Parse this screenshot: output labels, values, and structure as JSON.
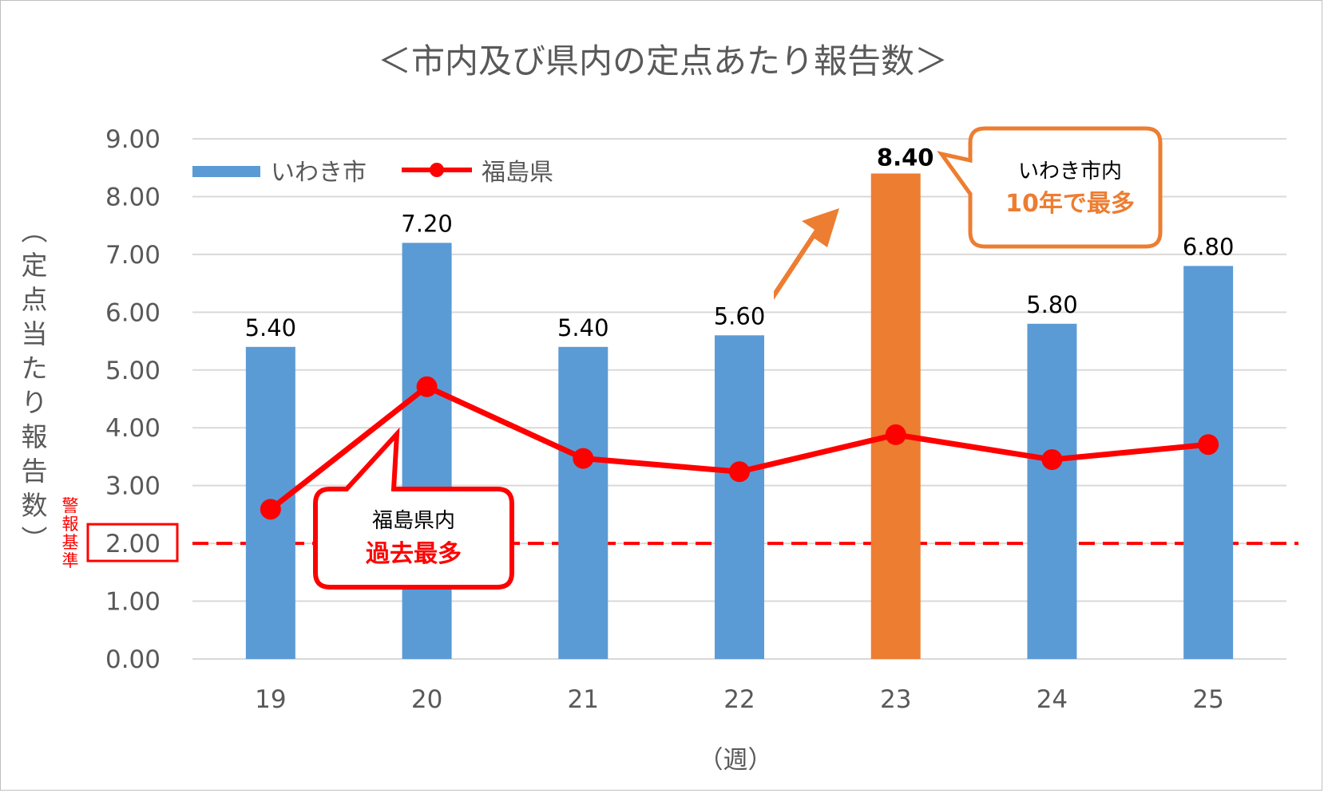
{
  "chart_data": {
    "type": "bar",
    "title": "＜市内及び県内の定点あたり報告数＞",
    "xlabel": "（週）",
    "ylabel": "（定点当たり報告数）",
    "categories": [
      "19",
      "20",
      "21",
      "22",
      "23",
      "24",
      "25"
    ],
    "ylim": [
      0,
      9
    ],
    "yticks": [
      "0.00",
      "1.00",
      "2.00",
      "3.00",
      "4.00",
      "5.00",
      "6.00",
      "7.00",
      "8.00",
      "9.00"
    ],
    "grid": true,
    "legend_position": "top-left",
    "series": [
      {
        "name": "いわき市",
        "type": "bar",
        "color": "#5b9bd5",
        "highlight_color": "#ed7d31",
        "highlight_index": 4,
        "values": [
          5.4,
          7.2,
          5.4,
          5.6,
          8.4,
          5.8,
          6.8
        ],
        "labels": [
          "5.40",
          "7.20",
          "5.40",
          "5.60",
          "8.40",
          "5.80",
          "6.80"
        ]
      },
      {
        "name": "福島県",
        "type": "line",
        "color": "#ff0000",
        "values": [
          2.59,
          4.71,
          3.47,
          3.24,
          3.88,
          3.45,
          3.71
        ]
      }
    ],
    "reference_line": {
      "value": 2.0,
      "label": "警報基準",
      "color": "#ff0000"
    },
    "annotations": [
      {
        "line1": "いわき市内",
        "line2": "10年で最多",
        "color": "#ed7d31"
      },
      {
        "line1": "福島県内",
        "line2": "過去最多",
        "color": "#ff0000"
      }
    ]
  }
}
